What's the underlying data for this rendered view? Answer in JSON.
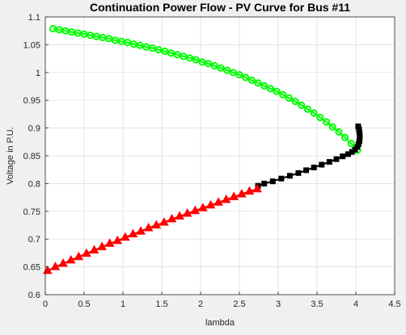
{
  "chart_data": {
    "type": "line",
    "title": "Continuation Power Flow - PV Curve for Bus #11",
    "xlabel": "lambda",
    "ylabel": "Voltage in P.U.",
    "xlim": [
      0,
      4.5
    ],
    "ylim": [
      0.6,
      1.1
    ],
    "xticks": [
      "0",
      "0.5",
      "1",
      "1.5",
      "2",
      "2.5",
      "3",
      "3.5",
      "4",
      "4.5"
    ],
    "yticks": [
      "0.6",
      "0.65",
      "0.7",
      "0.75",
      "0.8",
      "0.85",
      "0.9",
      "0.95",
      "1",
      "1.05",
      "1.1"
    ],
    "grid": true,
    "legend": false,
    "colors": {
      "upper": "#00ff00",
      "nose": "#000000",
      "lower": "#ff0000",
      "background": "#f0f0f0",
      "axes": "#ffffff",
      "grid": "#dcdcdc"
    },
    "series": [
      {
        "marker": "circle",
        "color": "#00ff00",
        "x": [
          0.1,
          0.18,
          0.26,
          0.34,
          0.42,
          0.5,
          0.58,
          0.66,
          0.74,
          0.82,
          0.9,
          0.98,
          1.06,
          1.14,
          1.22,
          1.3,
          1.38,
          1.46,
          1.54,
          1.62,
          1.7,
          1.78,
          1.86,
          1.94,
          2.02,
          2.1,
          2.18,
          2.26,
          2.34,
          2.42,
          2.5,
          2.58,
          2.66,
          2.74,
          2.82,
          2.9,
          2.98,
          3.06,
          3.14,
          3.22,
          3.3,
          3.38,
          3.46,
          3.54,
          3.62,
          3.7,
          3.78,
          3.86,
          3.94,
          4.02
        ],
        "y": [
          1.079,
          1.077,
          1.075,
          1.073,
          1.071,
          1.069,
          1.067,
          1.065,
          1.063,
          1.061,
          1.058,
          1.056,
          1.054,
          1.051,
          1.049,
          1.046,
          1.044,
          1.041,
          1.038,
          1.035,
          1.032,
          1.029,
          1.026,
          1.023,
          1.019,
          1.016,
          1.012,
          1.008,
          1.004,
          1.0,
          0.996,
          0.991,
          0.986,
          0.981,
          0.976,
          0.971,
          0.966,
          0.96,
          0.954,
          0.948,
          0.941,
          0.934,
          0.927,
          0.919,
          0.911,
          0.902,
          0.893,
          0.883,
          0.872,
          0.86
        ]
      },
      {
        "marker": "square",
        "color": "#000000",
        "x": [
          4.03,
          4.04,
          4.045,
          4.05,
          4.05,
          4.045,
          4.035,
          4.02,
          3.99,
          3.95,
          3.9,
          3.83,
          3.75,
          3.66,
          3.56,
          3.46,
          3.36,
          3.26,
          3.15,
          3.04,
          2.93,
          2.82,
          2.74
        ],
        "y": [
          0.903,
          0.898,
          0.893,
          0.888,
          0.882,
          0.876,
          0.871,
          0.866,
          0.861,
          0.857,
          0.853,
          0.849,
          0.844,
          0.839,
          0.834,
          0.829,
          0.824,
          0.819,
          0.814,
          0.809,
          0.804,
          0.8,
          0.796
        ]
      },
      {
        "marker": "triangle",
        "color": "#ff0000",
        "x": [
          0.03,
          0.13,
          0.23,
          0.33,
          0.43,
          0.53,
          0.63,
          0.73,
          0.83,
          0.93,
          1.03,
          1.13,
          1.23,
          1.33,
          1.43,
          1.53,
          1.63,
          1.73,
          1.83,
          1.93,
          2.03,
          2.13,
          2.23,
          2.33,
          2.43,
          2.53,
          2.63,
          2.73
        ],
        "y": [
          0.643,
          0.65,
          0.656,
          0.662,
          0.668,
          0.674,
          0.68,
          0.686,
          0.692,
          0.697,
          0.703,
          0.709,
          0.714,
          0.72,
          0.725,
          0.73,
          0.736,
          0.741,
          0.746,
          0.751,
          0.756,
          0.761,
          0.766,
          0.771,
          0.776,
          0.781,
          0.786,
          0.79
        ]
      }
    ]
  }
}
